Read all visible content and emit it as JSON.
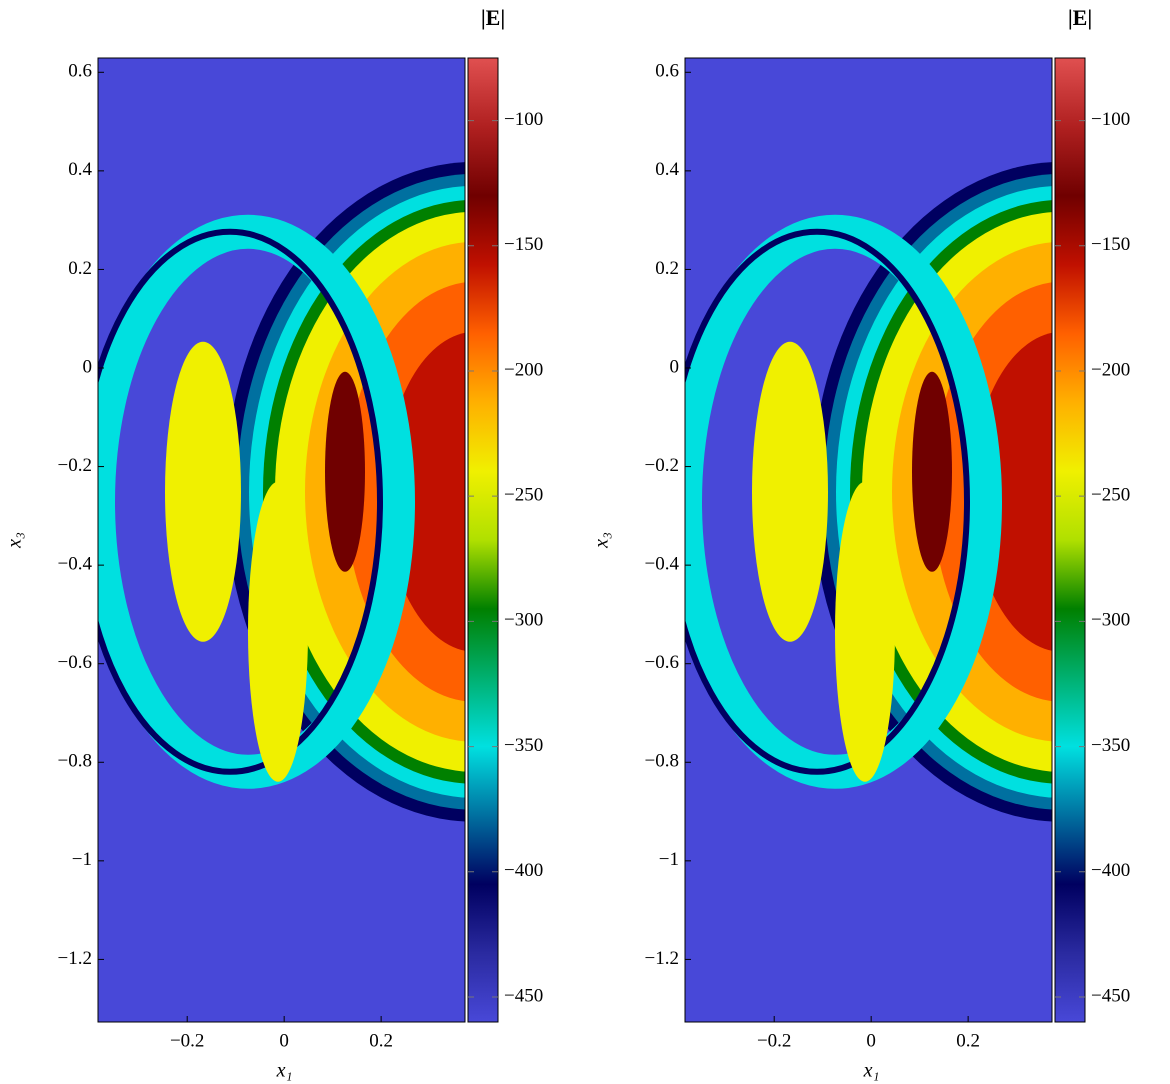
{
  "chart_data": [
    {
      "type": "heatmap",
      "xlabel": "x₁",
      "ylabel": "x₃",
      "colorbar_label": "|E|",
      "xlim": [
        -0.384,
        0.373
      ],
      "ylim": [
        -1.327,
        0.629
      ],
      "xticks": [
        {
          "value": -0.2,
          "label": "−0.2"
        },
        0,
        0.2
      ],
      "yticks": [
        0.6,
        0.4,
        0.2,
        0,
        {
          "value": -0.2,
          "label": "−0.2"
        },
        {
          "value": -0.4,
          "label": "−0.4"
        },
        {
          "value": -0.6,
          "label": "−0.6"
        },
        {
          "value": -0.8,
          "label": "−0.8"
        },
        {
          "value": -1,
          "label": "−1"
        },
        {
          "value": -1.2,
          "label": "−1.2"
        }
      ],
      "clim": [
        -460,
        -75
      ],
      "cticks": [
        {
          "value": -100,
          "label": "−100"
        },
        {
          "value": -150,
          "label": "−150"
        },
        {
          "value": -200,
          "label": "−200"
        },
        {
          "value": -250,
          "label": "−250"
        },
        {
          "value": -300,
          "label": "−300"
        },
        {
          "value": -350,
          "label": "−350"
        },
        {
          "value": -400,
          "label": "−400"
        },
        {
          "value": -450,
          "label": "−450"
        }
      ],
      "colormap": [
        "#4848d8",
        "#2a2aa0",
        "#000060",
        "#0070a0",
        "#00e0e0",
        "#00b070",
        "#008000",
        "#b0e000",
        "#f0f000",
        "#ffb000",
        "#ff6000",
        "#c01000",
        "#700000",
        "#b02020",
        "#e05050"
      ]
    },
    {
      "type": "heatmap",
      "xlabel": "x₁",
      "ylabel": "x₃",
      "colorbar_label": "|E|",
      "xlim": [
        -0.384,
        0.373
      ],
      "ylim": [
        -1.327,
        0.629
      ],
      "xticks": [
        {
          "value": -0.2,
          "label": "−0.2"
        },
        0,
        0.2
      ],
      "yticks": [
        0.6,
        0.4,
        0.2,
        0,
        {
          "value": -0.2,
          "label": "−0.2"
        },
        {
          "value": -0.4,
          "label": "−0.4"
        },
        {
          "value": -0.6,
          "label": "−0.6"
        },
        {
          "value": -0.8,
          "label": "−0.8"
        },
        {
          "value": -1,
          "label": "−1"
        },
        {
          "value": -1.2,
          "label": "−1.2"
        }
      ],
      "clim": [
        -460,
        -75
      ],
      "cticks": [
        {
          "value": -100,
          "label": "−100"
        },
        {
          "value": -150,
          "label": "−150"
        },
        {
          "value": -200,
          "label": "−200"
        },
        {
          "value": -250,
          "label": "−250"
        },
        {
          "value": -300,
          "label": "−300"
        },
        {
          "value": -350,
          "label": "−350"
        },
        {
          "value": -400,
          "label": "−400"
        },
        {
          "value": -450,
          "label": "−450"
        }
      ],
      "colormap": [
        "#4848d8",
        "#2a2aa0",
        "#000060",
        "#0070a0",
        "#00e0e0",
        "#00b070",
        "#008000",
        "#b0e000",
        "#f0f000",
        "#ffb000",
        "#ff6000",
        "#c01000",
        "#700000",
        "#b02020",
        "#e05050"
      ]
    }
  ]
}
